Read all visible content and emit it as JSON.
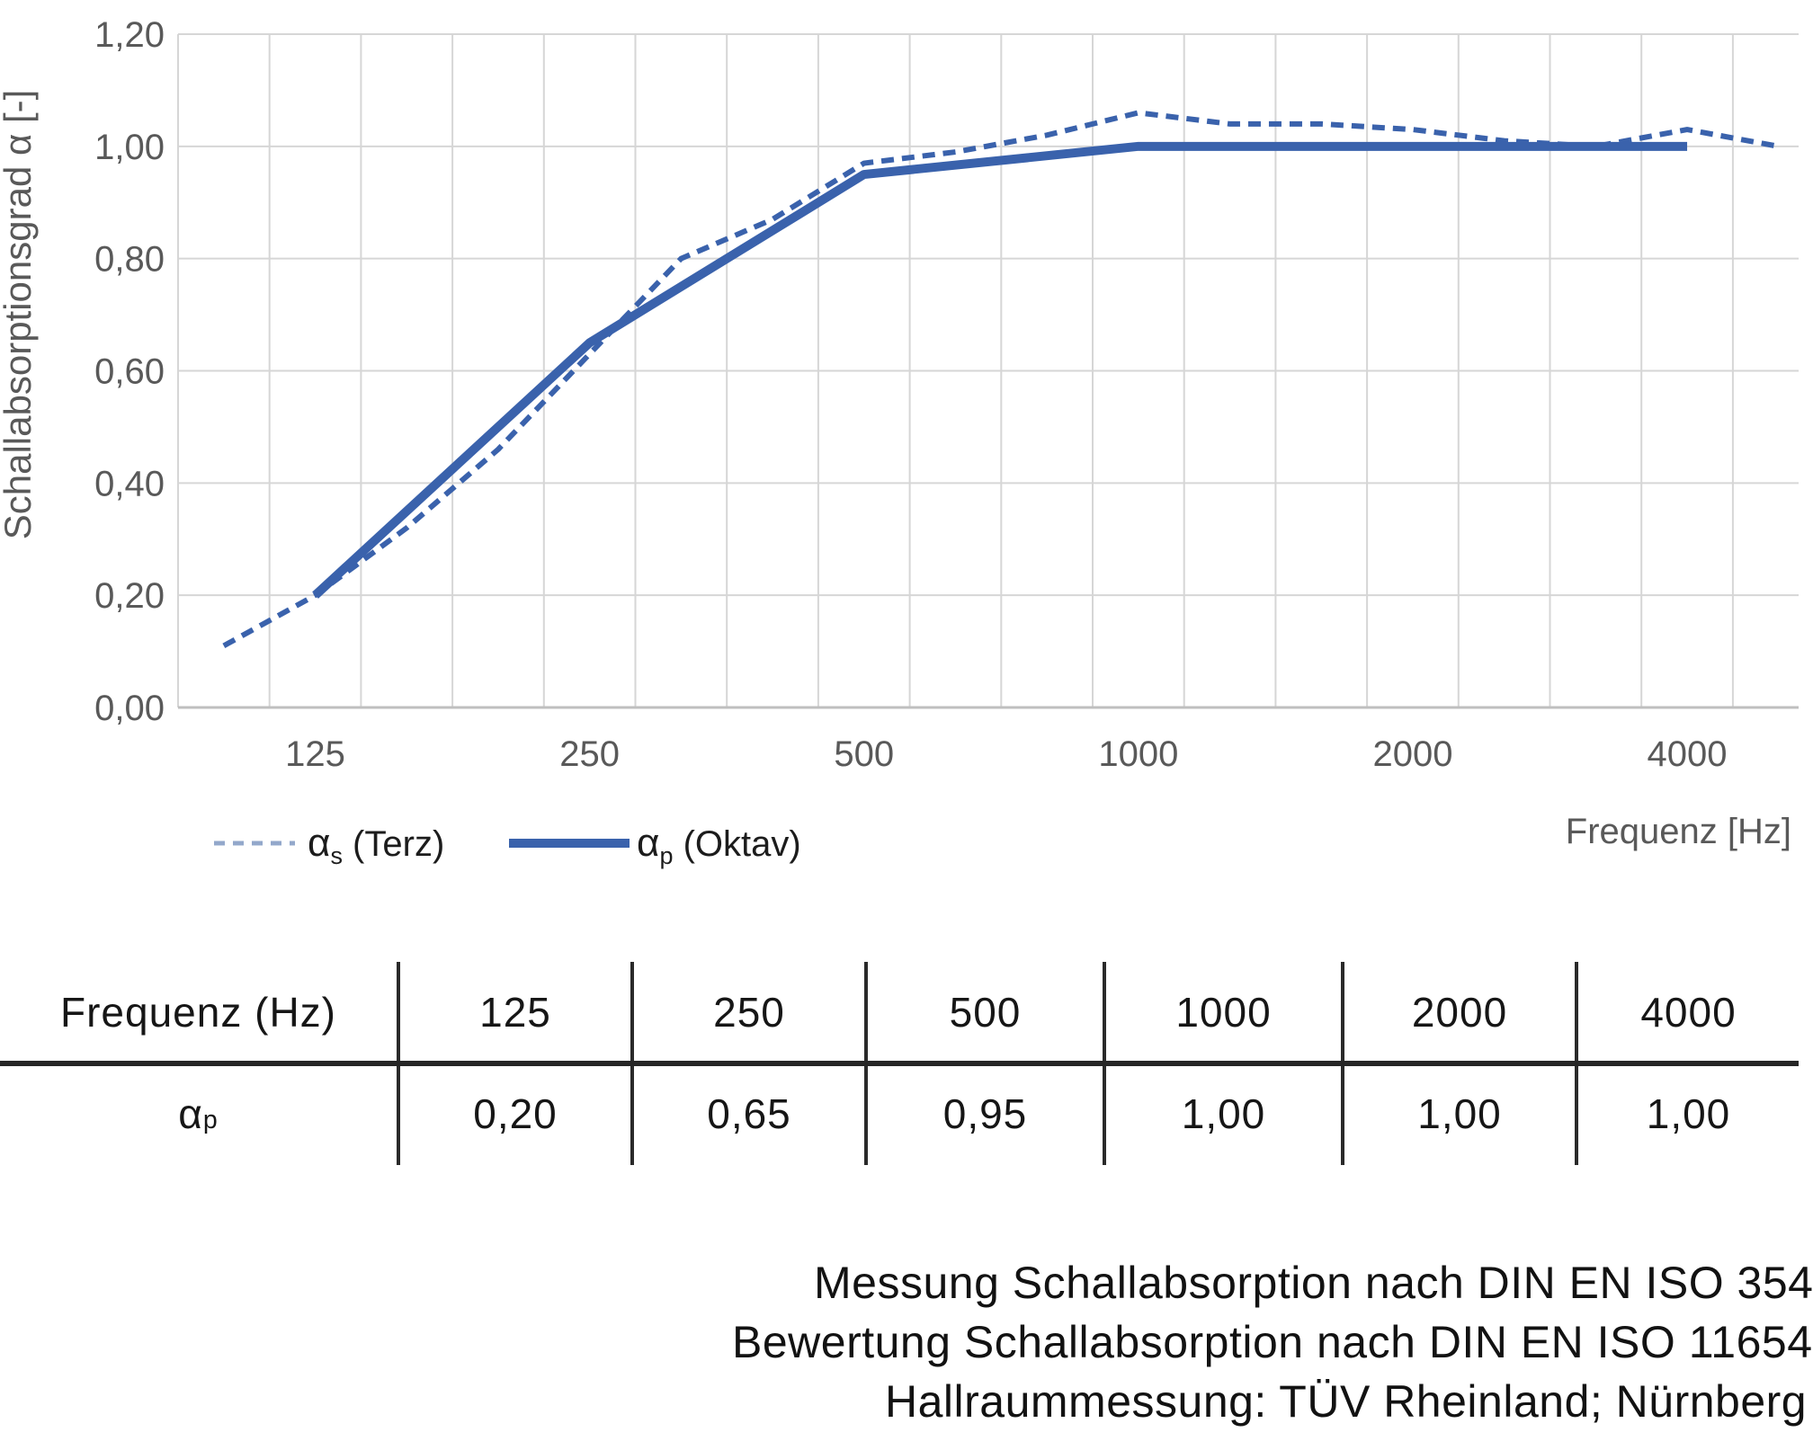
{
  "colors": {
    "series_blue": "#3A62AC",
    "legend_dash": "#93A8CB",
    "grid": "#D6D6D6",
    "axis_line": "#BFBFBF",
    "axis_text": "#595959",
    "ink": "#161616",
    "rule": "#262626"
  },
  "chart": {
    "y_axis": {
      "title": "Schallabsorptionsgrad α [-]",
      "ticks": [
        {
          "label": "1,20",
          "value": 1.2
        },
        {
          "label": "1,00",
          "value": 1.0
        },
        {
          "label": "0,80",
          "value": 0.8
        },
        {
          "label": "0,60",
          "value": 0.6
        },
        {
          "label": "0,40",
          "value": 0.4
        },
        {
          "label": "0,20",
          "value": 0.2
        },
        {
          "label": "0,00",
          "value": 0.0
        }
      ]
    },
    "x_axis": {
      "title": "Frequenz [Hz]",
      "ticks": [
        {
          "label": "125",
          "freq": 125
        },
        {
          "label": "250",
          "freq": 250
        },
        {
          "label": "500",
          "freq": 500
        },
        {
          "label": "1000",
          "freq": 1000
        },
        {
          "label": "2000",
          "freq": 2000
        },
        {
          "label": "4000",
          "freq": 4000
        }
      ]
    },
    "legend": [
      {
        "alpha": "α",
        "sub": "s",
        "rest": " (Terz)",
        "style": "dashed"
      },
      {
        "alpha": "α",
        "sub": "p",
        "rest": " (Oktav)",
        "style": "solid"
      }
    ]
  },
  "chart_data": {
    "type": "line",
    "x_scale": "third-octave log categories",
    "x_categories": [
      100,
      125,
      160,
      200,
      250,
      315,
      400,
      500,
      630,
      800,
      1000,
      1250,
      1600,
      2000,
      2500,
      3150,
      4000,
      5000
    ],
    "series": [
      {
        "name": "αs (Terz)",
        "style": "dashed",
        "x": [
          100,
          125,
          160,
          200,
          250,
          315,
          400,
          500,
          630,
          800,
          1000,
          1250,
          1600,
          2000,
          2500,
          3150,
          4000,
          5000
        ],
        "values": [
          0.11,
          0.2,
          0.32,
          0.46,
          0.63,
          0.8,
          0.87,
          0.97,
          0.99,
          1.02,
          1.06,
          1.04,
          1.04,
          1.03,
          1.01,
          1.0,
          1.03,
          1.0
        ]
      },
      {
        "name": "αp (Oktav)",
        "style": "solid",
        "x": [
          125,
          250,
          500,
          1000,
          2000,
          4000
        ],
        "values": [
          0.2,
          0.65,
          0.95,
          1.0,
          1.0,
          1.0
        ]
      }
    ],
    "xlabel": "Frequenz [Hz]",
    "ylabel": "Schallabsorptionsgrad α [-]",
    "ylim": [
      0,
      1.2
    ],
    "grid": true,
    "legend_position": "below-left"
  },
  "table": {
    "header_label": "Frequenz (Hz)",
    "frequencies": [
      "125",
      "250",
      "500",
      "1000",
      "2000",
      "4000"
    ],
    "row": {
      "alpha": "α",
      "sub": "p",
      "values": [
        "0,20",
        "0,65",
        "0,95",
        "1,00",
        "1,00",
        "1,00"
      ]
    }
  },
  "footer": {
    "lines": [
      "Messung Schallabsorption nach DIN EN ISO 354",
      "Bewertung Schallabsorption nach DIN EN ISO 11654",
      "Hallraummessung: TÜV Rheinland; Nürnberg"
    ]
  }
}
